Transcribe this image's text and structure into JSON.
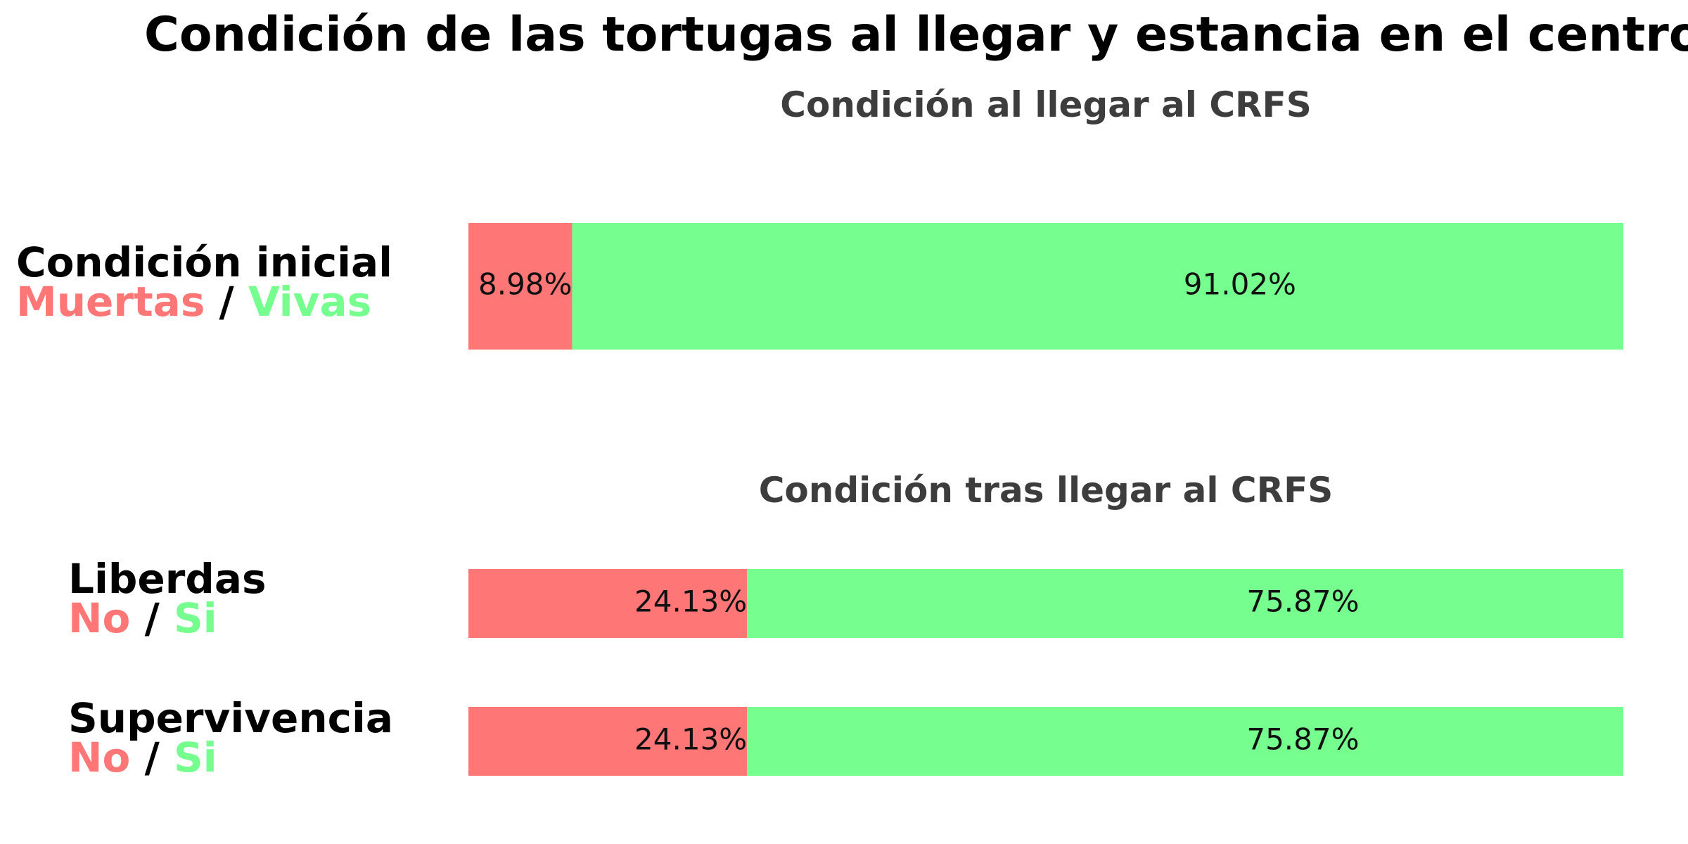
{
  "title": "Condición de las tortugas al llegar y estancia en el centro",
  "subtitles": {
    "arrival": "Condición al llegar al CRFS",
    "after": "Condición tras llegar al CRFS"
  },
  "colors": {
    "negative": "#ff7676",
    "positive": "#76ff8f"
  },
  "rows": [
    {
      "name": "Condición inicial",
      "neg_label": "Muertas",
      "sep": "/",
      "pos_label": "Vivas"
    },
    {
      "name": "Liberdas",
      "neg_label": "No",
      "sep": "/",
      "pos_label": "Si"
    },
    {
      "name": "Supervivencia",
      "neg_label": "No",
      "sep": "/",
      "pos_label": "Si"
    }
  ],
  "chart_data": {
    "type": "bar",
    "orientation": "horizontal-stacked",
    "categories": [
      "Condición inicial",
      "Liberdas",
      "Supervivencia"
    ],
    "series": [
      {
        "name": "Muertas / No",
        "values": [
          8.98,
          24.13,
          24.13
        ],
        "labels": [
          "8.98%",
          "24.13%",
          "24.13%"
        ]
      },
      {
        "name": "Vivas / Si",
        "values": [
          91.02,
          75.87,
          75.87
        ],
        "labels": [
          "91.02%",
          "75.87%",
          "75.87%"
        ]
      }
    ],
    "xlim": [
      0,
      100
    ],
    "grid": false
  }
}
